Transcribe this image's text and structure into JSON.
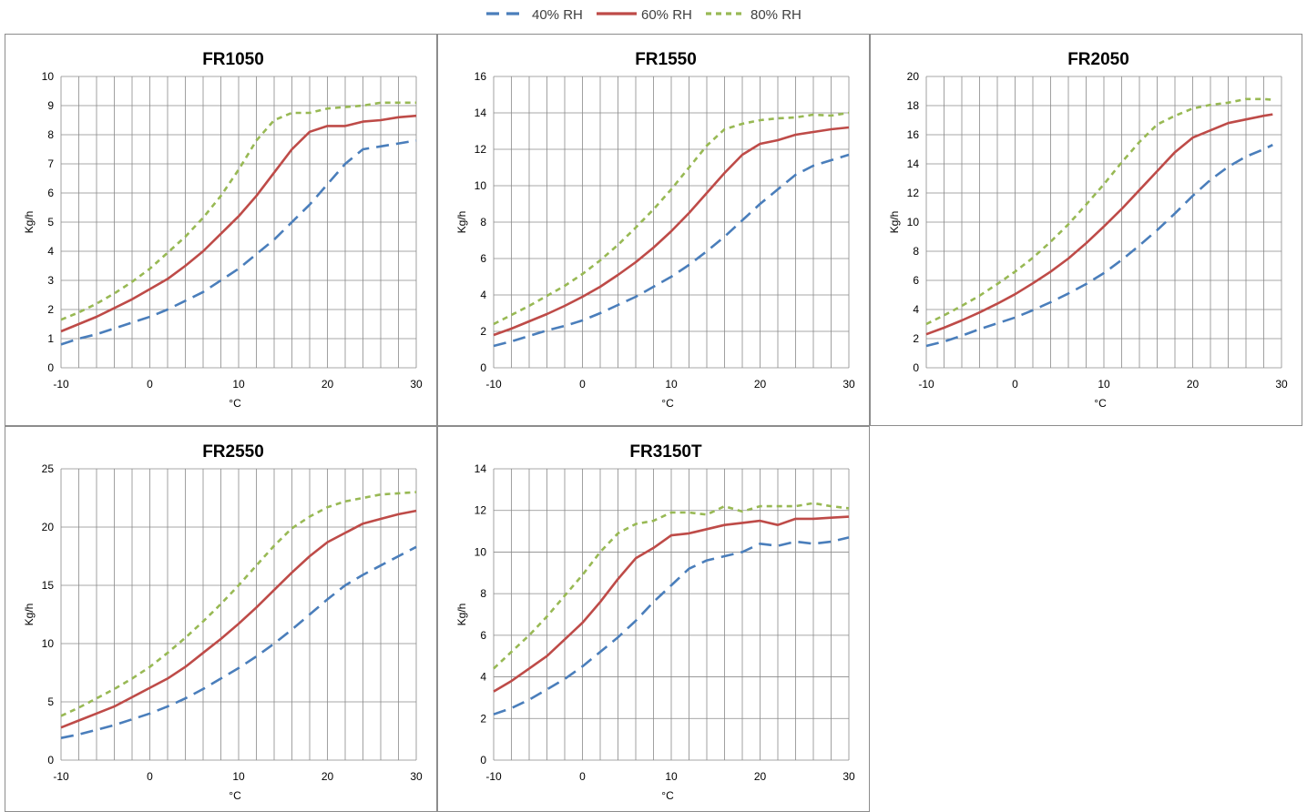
{
  "legend": [
    {
      "name": "40% RH",
      "color": "#4a7ebb",
      "dash": "14,8"
    },
    {
      "name": "60% RH",
      "color": "#be4b48",
      "dash": ""
    },
    {
      "name": "80% RH",
      "color": "#98b954",
      "dash": "6,5"
    }
  ],
  "chart_data": [
    {
      "type": "line",
      "title": "FR1050",
      "xlabel": "°C",
      "ylabel": "Kg/h",
      "xlim": [
        -10,
        30
      ],
      "ylim": [
        0,
        10
      ],
      "yticks": [
        0,
        1,
        2,
        3,
        4,
        5,
        6,
        7,
        8,
        9,
        10
      ],
      "xticks": [
        -10,
        0,
        10,
        20,
        30
      ],
      "grid": true,
      "x": [
        -10,
        -8,
        -6,
        -4,
        -2,
        0,
        2,
        4,
        6,
        8,
        10,
        12,
        14,
        16,
        18,
        20,
        22,
        24,
        26,
        28,
        30
      ],
      "series": [
        {
          "name": "40% RH",
          "values": [
            0.8,
            1.0,
            1.15,
            1.35,
            1.55,
            1.75,
            2.0,
            2.3,
            2.6,
            3.0,
            3.4,
            3.9,
            4.4,
            5.0,
            5.6,
            6.3,
            7.0,
            7.5,
            7.6,
            7.7,
            7.8
          ]
        },
        {
          "name": "60% RH",
          "values": [
            1.25,
            1.5,
            1.75,
            2.05,
            2.35,
            2.7,
            3.05,
            3.5,
            4.0,
            4.6,
            5.2,
            5.9,
            6.7,
            7.5,
            8.1,
            8.3,
            8.3,
            8.45,
            8.5,
            8.6,
            8.65
          ]
        },
        {
          "name": "80% RH",
          "values": [
            1.65,
            1.9,
            2.2,
            2.55,
            2.95,
            3.4,
            3.95,
            4.5,
            5.15,
            5.9,
            6.8,
            7.8,
            8.5,
            8.75,
            8.75,
            8.9,
            8.95,
            9.0,
            9.1,
            9.1,
            9.1
          ]
        }
      ]
    },
    {
      "type": "line",
      "title": "FR1550",
      "xlabel": "°C",
      "ylabel": "Kg/h",
      "xlim": [
        -10,
        30
      ],
      "ylim": [
        0,
        16
      ],
      "yticks": [
        0,
        2,
        4,
        6,
        8,
        10,
        12,
        14,
        16
      ],
      "xticks": [
        -10,
        0,
        10,
        20,
        30
      ],
      "grid": true,
      "x": [
        -10,
        -8,
        -6,
        -4,
        -2,
        0,
        2,
        4,
        6,
        8,
        10,
        12,
        14,
        16,
        18,
        20,
        22,
        24,
        26,
        28,
        30
      ],
      "series": [
        {
          "name": "40% RH",
          "values": [
            1.2,
            1.45,
            1.75,
            2.05,
            2.3,
            2.6,
            3.0,
            3.45,
            3.9,
            4.45,
            5.0,
            5.65,
            6.4,
            7.2,
            8.1,
            9.0,
            9.8,
            10.6,
            11.1,
            11.4,
            11.7
          ]
        },
        {
          "name": "60% RH",
          "values": [
            1.8,
            2.15,
            2.55,
            2.95,
            3.4,
            3.9,
            4.45,
            5.1,
            5.8,
            6.6,
            7.5,
            8.5,
            9.6,
            10.7,
            11.7,
            12.3,
            12.5,
            12.8,
            12.95,
            13.1,
            13.2
          ]
        },
        {
          "name": "80% RH",
          "values": [
            2.4,
            2.9,
            3.4,
            3.95,
            4.5,
            5.15,
            5.9,
            6.75,
            7.7,
            8.7,
            9.8,
            11.0,
            12.2,
            13.1,
            13.4,
            13.6,
            13.7,
            13.75,
            13.9,
            13.85,
            14.0
          ]
        }
      ]
    },
    {
      "type": "line",
      "title": "FR2050",
      "xlabel": "°C",
      "ylabel": "Kg/h",
      "xlim": [
        -10,
        30
      ],
      "ylim": [
        0,
        20
      ],
      "yticks": [
        0,
        2,
        4,
        6,
        8,
        10,
        12,
        14,
        16,
        18,
        20
      ],
      "xticks": [
        -10,
        0,
        10,
        20,
        30
      ],
      "grid": true,
      "x": [
        -10,
        -8,
        -6,
        -4,
        -2,
        0,
        2,
        4,
        6,
        8,
        10,
        12,
        14,
        16,
        18,
        20,
        22,
        24,
        26,
        28,
        29
      ],
      "series": [
        {
          "name": "40% RH",
          "values": [
            1.5,
            1.8,
            2.2,
            2.65,
            3.05,
            3.45,
            3.95,
            4.5,
            5.1,
            5.75,
            6.5,
            7.4,
            8.4,
            9.45,
            10.6,
            11.8,
            12.9,
            13.8,
            14.5,
            15.0,
            15.3
          ]
        },
        {
          "name": "60% RH",
          "values": [
            2.3,
            2.75,
            3.25,
            3.8,
            4.4,
            5.05,
            5.8,
            6.6,
            7.5,
            8.55,
            9.7,
            10.9,
            12.2,
            13.5,
            14.8,
            15.8,
            16.3,
            16.8,
            17.05,
            17.3,
            17.4
          ]
        },
        {
          "name": "80% RH",
          "values": [
            3.0,
            3.6,
            4.25,
            4.95,
            5.75,
            6.6,
            7.55,
            8.65,
            9.85,
            11.2,
            12.6,
            14.1,
            15.5,
            16.7,
            17.3,
            17.8,
            18.05,
            18.2,
            18.45,
            18.45,
            18.4
          ]
        }
      ]
    },
    {
      "type": "line",
      "title": "FR2550",
      "xlabel": "°C",
      "ylabel": "Kg/h",
      "xlim": [
        -10,
        30
      ],
      "ylim": [
        0,
        25
      ],
      "yticks": [
        0,
        5,
        10,
        15,
        20,
        25
      ],
      "xticks": [
        -10,
        0,
        10,
        20,
        30
      ],
      "grid": true,
      "x": [
        -10,
        -8,
        -6,
        -4,
        -2,
        0,
        2,
        4,
        6,
        8,
        10,
        12,
        14,
        16,
        18,
        20,
        22,
        24,
        26,
        28,
        30
      ],
      "series": [
        {
          "name": "40% RH",
          "values": [
            1.9,
            2.2,
            2.6,
            3.0,
            3.5,
            4.0,
            4.6,
            5.3,
            6.1,
            7.0,
            7.9,
            8.9,
            10.0,
            11.2,
            12.5,
            13.8,
            15.0,
            15.9,
            16.7,
            17.5,
            18.3
          ]
        },
        {
          "name": "60% RH",
          "values": [
            2.8,
            3.4,
            4.0,
            4.6,
            5.4,
            6.2,
            7.0,
            8.0,
            9.2,
            10.4,
            11.7,
            13.1,
            14.6,
            16.1,
            17.5,
            18.7,
            19.5,
            20.3,
            20.7,
            21.1,
            21.4
          ]
        },
        {
          "name": "80% RH",
          "values": [
            3.8,
            4.5,
            5.3,
            6.1,
            7.0,
            8.0,
            9.2,
            10.5,
            11.9,
            13.4,
            15.0,
            16.7,
            18.4,
            19.9,
            20.9,
            21.7,
            22.2,
            22.5,
            22.8,
            22.9,
            23.0
          ]
        }
      ]
    },
    {
      "type": "line",
      "title": "FR3150T",
      "xlabel": "°C",
      "ylabel": "Kg/h",
      "xlim": [
        -10,
        30
      ],
      "ylim": [
        0,
        14
      ],
      "yticks": [
        0,
        2,
        4,
        6,
        8,
        10,
        12,
        14
      ],
      "xticks": [
        -10,
        0,
        10,
        20,
        30
      ],
      "grid": true,
      "x": [
        -10,
        -8,
        -6,
        -4,
        -2,
        0,
        2,
        4,
        6,
        8,
        10,
        12,
        14,
        16,
        18,
        20,
        22,
        24,
        26,
        28,
        30
      ],
      "series": [
        {
          "name": "40% RH",
          "values": [
            2.2,
            2.5,
            2.9,
            3.4,
            3.9,
            4.5,
            5.2,
            5.9,
            6.7,
            7.6,
            8.4,
            9.2,
            9.6,
            9.8,
            10.0,
            10.4,
            10.3,
            10.5,
            10.4,
            10.5,
            10.7
          ]
        },
        {
          "name": "60% RH",
          "values": [
            3.3,
            3.8,
            4.4,
            5.0,
            5.8,
            6.6,
            7.6,
            8.7,
            9.7,
            10.2,
            10.8,
            10.9,
            11.1,
            11.3,
            11.4,
            11.5,
            11.3,
            11.6,
            11.6,
            11.65,
            11.7
          ]
        },
        {
          "name": "80% RH",
          "values": [
            4.4,
            5.2,
            6.0,
            6.9,
            7.9,
            8.9,
            10.0,
            10.9,
            11.35,
            11.5,
            11.9,
            11.9,
            11.8,
            12.2,
            11.95,
            12.2,
            12.2,
            12.2,
            12.35,
            12.2,
            12.1
          ]
        }
      ]
    }
  ]
}
